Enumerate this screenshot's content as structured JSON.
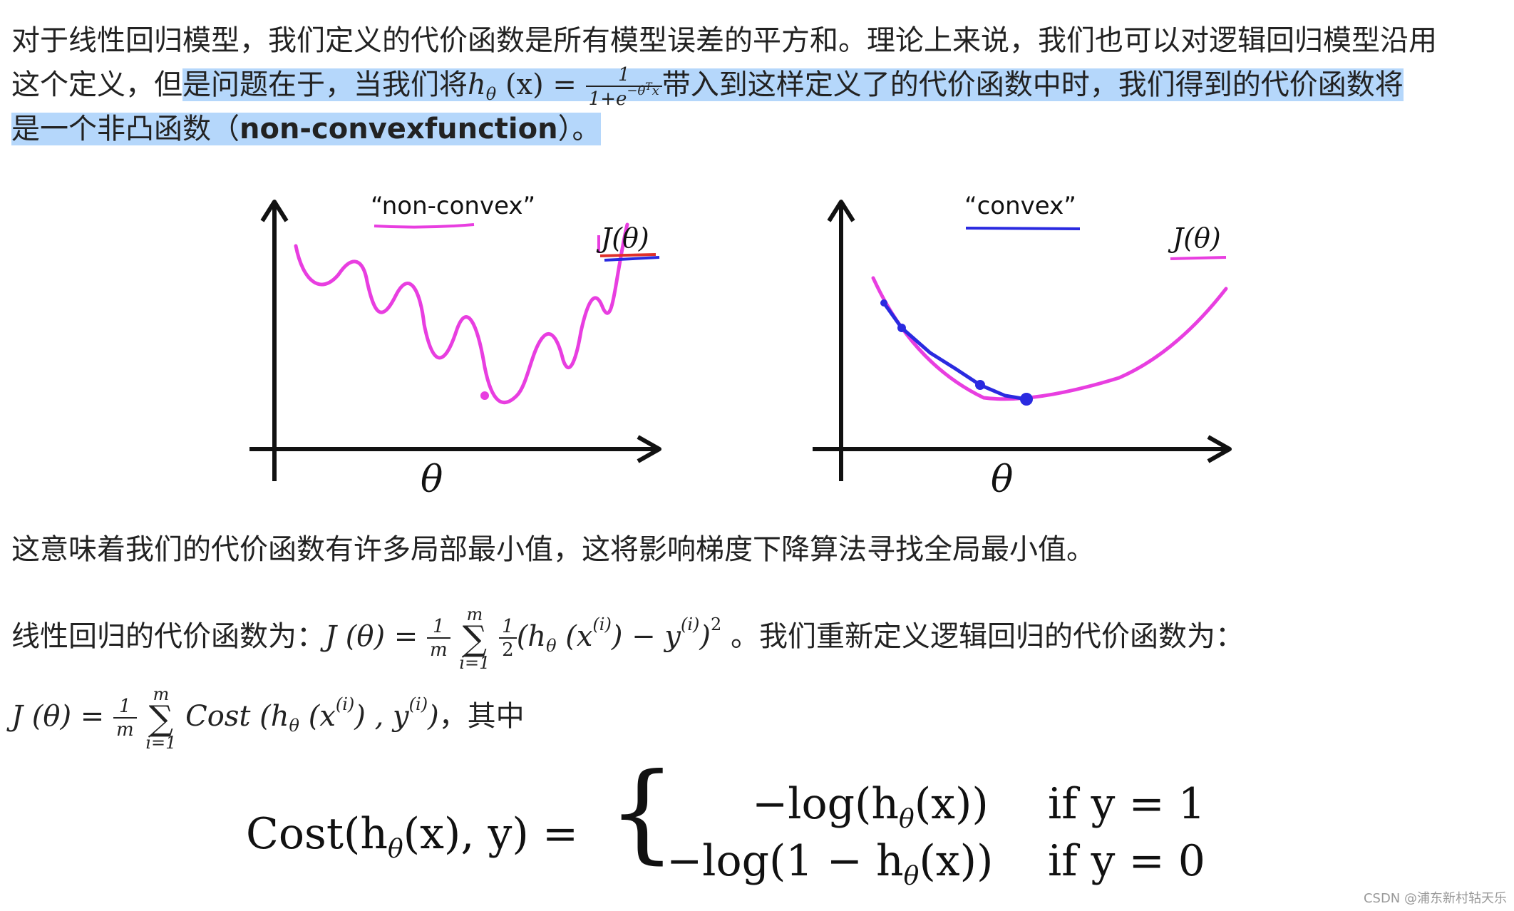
{
  "para1": {
    "line1": "对于线性回归模型，我们定义的代价函数是所有模型误差的平方和。理论上来说，我们也可以对逻辑回归模型沿用",
    "line2_pre": "这个定义，但",
    "line2_hl": "是问题在于，当我们将",
    "line2_post": "带入到这样定义了的代价函数中时，我们得到的代价函数将",
    "line3_pre": "是一个非凸函数（",
    "line3_bold": "non-convexfunction",
    "line3_post": "）。"
  },
  "hypothesis": {
    "lhs": "h",
    "theta": "θ",
    "x": "(x) =",
    "num": "1",
    "den": "1+e",
    "exp": "−θ",
    "expT": "T",
    "expx": "x"
  },
  "figure": {
    "left_title": "“non-convex”",
    "right_title": "“convex”",
    "left_ylabel": "J(θ)",
    "right_ylabel": "J(θ)",
    "left_xlabel": "θ",
    "right_xlabel": "θ",
    "curve_color": "#e83ee0",
    "path_color": "#2a2ae0",
    "axis_color": "#111111"
  },
  "para2": "这意味着我们的代价函数有许多局部最小值，这将影响梯度下降算法寻找全局最小值。",
  "para3": {
    "pre": "线性回归的代价函数为：",
    "J": "J (θ) =",
    "frac_num": "1",
    "frac_den": "m",
    "sum_top": "m",
    "sum_bot": "i=1",
    "half_num": "1",
    "half_den": "2",
    "body": "(h",
    "body_sub": "θ",
    "body2": " (x",
    "sup_i": "(i)",
    "body3": ") − y",
    "sup_i2": "(i)",
    "body4": ")",
    "sq": "2",
    "post": " 。我们重新定义逻辑回归的代价函数为："
  },
  "para4": {
    "J": "J (θ) =",
    "frac_num": "1",
    "frac_den": "m",
    "sum_top": "m",
    "sum_bot": "i=1",
    "cost": "Cost",
    "body": " (h",
    "body_sub": "θ",
    "body2": " (x",
    "sup_i": "(i)",
    "body3": ") , y",
    "sup_i2": "(i)",
    "body4": ")",
    "post": "，其中"
  },
  "costdef": {
    "lhs": "Cost(h",
    "lhs_sub": "θ",
    "lhs2": "(x), y) =",
    "brace": "{",
    "r1": "−log(h",
    "r1_sub": "θ",
    "r1b": "(x))",
    "r2": "−log(1 − h",
    "r2_sub": "θ",
    "r2b": "(x))",
    "c1": "if y = 1",
    "c2": "if y = 0"
  },
  "watermark": "CSDN @浦东新村轱天乐"
}
